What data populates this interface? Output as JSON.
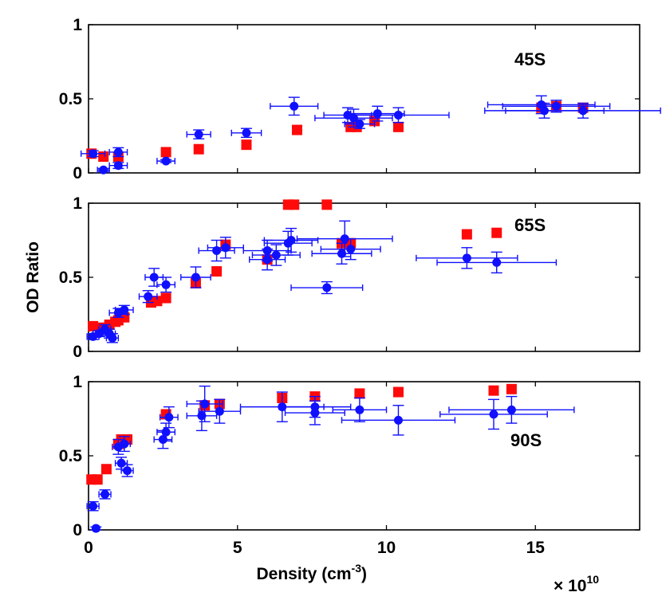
{
  "chart_data": {
    "type": "scatter",
    "ylabel": "OD Ratio",
    "xlabel": "Density (cm",
    "xlabel_sup": "-3",
    "xlabel_close": ")",
    "x_multiplier": "× 10",
    "x_multiplier_exp": "10",
    "xlim": [
      0,
      18.5
    ],
    "ylim": [
      0,
      1
    ],
    "xticks": [
      0,
      5,
      10,
      15
    ],
    "xtick_labels": [
      "0",
      "5",
      "10",
      "15"
    ],
    "yticks": [
      0,
      0.5,
      1
    ],
    "ytick_labels": [
      "0",
      "0.5",
      "1"
    ],
    "colors": {
      "series_blue": "#1010ff",
      "series_red": "#ff0a0a"
    },
    "panels": [
      {
        "label": "45S",
        "blue": [
          {
            "x": 0.15,
            "y": 0.13,
            "xerr": 0.4,
            "yerr": 0.02
          },
          {
            "x": 0.5,
            "y": 0.02,
            "xerr": 0.2,
            "yerr": 0.01
          },
          {
            "x": 1.0,
            "y": 0.14,
            "xerr": 0.3,
            "yerr": 0.03
          },
          {
            "x": 1.0,
            "y": 0.05,
            "xerr": 0.3,
            "yerr": 0.02
          },
          {
            "x": 2.6,
            "y": 0.08,
            "xerr": 0.3,
            "yerr": 0.01
          },
          {
            "x": 3.7,
            "y": 0.26,
            "xerr": 0.4,
            "yerr": 0.03
          },
          {
            "x": 5.3,
            "y": 0.27,
            "xerr": 0.5,
            "yerr": 0.03
          },
          {
            "x": 6.9,
            "y": 0.45,
            "xerr": 0.8,
            "yerr": 0.06
          },
          {
            "x": 8.7,
            "y": 0.39,
            "xerr": 0.8,
            "yerr": 0.05
          },
          {
            "x": 8.9,
            "y": 0.37,
            "xerr": 1.3,
            "yerr": 0.06
          },
          {
            "x": 9.1,
            "y": 0.33,
            "xerr": 0.5,
            "yerr": 0.03
          },
          {
            "x": 9.7,
            "y": 0.4,
            "xerr": 0.9,
            "yerr": 0.05
          },
          {
            "x": 10.4,
            "y": 0.39,
            "xerr": 1.7,
            "yerr": 0.05
          },
          {
            "x": 15.2,
            "y": 0.46,
            "xerr": 1.8,
            "yerr": 0.06
          },
          {
            "x": 15.3,
            "y": 0.42,
            "xerr": 2.0,
            "yerr": 0.05
          },
          {
            "x": 15.7,
            "y": 0.45,
            "xerr": 1.8,
            "yerr": 0.04
          },
          {
            "x": 16.6,
            "y": 0.42,
            "xerr": 2.6,
            "yerr": 0.05
          }
        ],
        "red": [
          {
            "x": 0.1,
            "y": 0.13
          },
          {
            "x": 0.5,
            "y": 0.11
          },
          {
            "x": 1.0,
            "y": 0.11
          },
          {
            "x": 2.6,
            "y": 0.14
          },
          {
            "x": 3.7,
            "y": 0.16
          },
          {
            "x": 5.3,
            "y": 0.19
          },
          {
            "x": 7.0,
            "y": 0.29
          },
          {
            "x": 8.8,
            "y": 0.31
          },
          {
            "x": 9.0,
            "y": 0.31
          },
          {
            "x": 9.6,
            "y": 0.35
          },
          {
            "x": 10.4,
            "y": 0.31
          },
          {
            "x": 15.2,
            "y": 0.44
          },
          {
            "x": 15.7,
            "y": 0.45
          },
          {
            "x": 16.6,
            "y": 0.44
          }
        ]
      },
      {
        "label": "65S",
        "blue": [
          {
            "x": 0.15,
            "y": 0.1,
            "xerr": 0.2,
            "yerr": 0.02
          },
          {
            "x": 0.35,
            "y": 0.12,
            "xerr": 0.2,
            "yerr": 0.02
          },
          {
            "x": 0.55,
            "y": 0.15,
            "xerr": 0.2,
            "yerr": 0.03
          },
          {
            "x": 0.7,
            "y": 0.12,
            "xerr": 0.2,
            "yerr": 0.03
          },
          {
            "x": 0.8,
            "y": 0.09,
            "xerr": 0.2,
            "yerr": 0.03
          },
          {
            "x": 1.0,
            "y": 0.26,
            "xerr": 0.3,
            "yerr": 0.03
          },
          {
            "x": 1.2,
            "y": 0.28,
            "xerr": 0.3,
            "yerr": 0.03
          },
          {
            "x": 2.0,
            "y": 0.37,
            "xerr": 0.3,
            "yerr": 0.04
          },
          {
            "x": 2.2,
            "y": 0.5,
            "xerr": 0.3,
            "yerr": 0.06
          },
          {
            "x": 2.6,
            "y": 0.45,
            "xerr": 0.3,
            "yerr": 0.05
          },
          {
            "x": 3.6,
            "y": 0.5,
            "xerr": 0.5,
            "yerr": 0.07
          },
          {
            "x": 4.3,
            "y": 0.68,
            "xerr": 0.6,
            "yerr": 0.07
          },
          {
            "x": 4.6,
            "y": 0.7,
            "xerr": 0.6,
            "yerr": 0.07
          },
          {
            "x": 6.0,
            "y": 0.62,
            "xerr": 0.6,
            "yerr": 0.07
          },
          {
            "x": 6.0,
            "y": 0.68,
            "xerr": 0.8,
            "yerr": 0.07
          },
          {
            "x": 6.3,
            "y": 0.65,
            "xerr": 0.8,
            "yerr": 0.07
          },
          {
            "x": 6.7,
            "y": 0.73,
            "xerr": 0.8,
            "yerr": 0.08
          },
          {
            "x": 6.8,
            "y": 0.75,
            "xerr": 0.9,
            "yerr": 0.08
          },
          {
            "x": 8.0,
            "y": 0.43,
            "xerr": 1.2,
            "yerr": 0.04
          },
          {
            "x": 8.5,
            "y": 0.66,
            "xerr": 1.0,
            "yerr": 0.07
          },
          {
            "x": 8.6,
            "y": 0.76,
            "xerr": 1.6,
            "yerr": 0.12
          },
          {
            "x": 8.8,
            "y": 0.69,
            "xerr": 1.0,
            "yerr": 0.07
          },
          {
            "x": 12.7,
            "y": 0.63,
            "xerr": 1.7,
            "yerr": 0.07
          },
          {
            "x": 13.7,
            "y": 0.6,
            "xerr": 2.0,
            "yerr": 0.07
          }
        ],
        "red": [
          {
            "x": 0.15,
            "y": 0.17
          },
          {
            "x": 0.45,
            "y": 0.16
          },
          {
            "x": 0.7,
            "y": 0.18
          },
          {
            "x": 0.9,
            "y": 0.2
          },
          {
            "x": 1.0,
            "y": 0.21
          },
          {
            "x": 1.2,
            "y": 0.23
          },
          {
            "x": 2.1,
            "y": 0.33
          },
          {
            "x": 2.3,
            "y": 0.34
          },
          {
            "x": 2.6,
            "y": 0.36
          },
          {
            "x": 3.6,
            "y": 0.46
          },
          {
            "x": 4.3,
            "y": 0.54
          },
          {
            "x": 4.6,
            "y": 0.72
          },
          {
            "x": 6.0,
            "y": 0.62
          },
          {
            "x": 6.7,
            "y": 0.99
          },
          {
            "x": 6.9,
            "y": 0.99
          },
          {
            "x": 8.0,
            "y": 0.99
          },
          {
            "x": 8.5,
            "y": 0.73
          },
          {
            "x": 8.8,
            "y": 0.73
          },
          {
            "x": 12.7,
            "y": 0.79
          },
          {
            "x": 13.7,
            "y": 0.8
          }
        ]
      },
      {
        "label": "90S",
        "blue": [
          {
            "x": 0.15,
            "y": 0.16,
            "xerr": 0.2,
            "yerr": 0.03
          },
          {
            "x": 0.25,
            "y": 0.01,
            "xerr": 0.1,
            "yerr": 0.01
          },
          {
            "x": 0.55,
            "y": 0.24,
            "xerr": 0.2,
            "yerr": 0.03
          },
          {
            "x": 1.0,
            "y": 0.56,
            "xerr": 0.2,
            "yerr": 0.05
          },
          {
            "x": 1.1,
            "y": 0.45,
            "xerr": 0.2,
            "yerr": 0.04
          },
          {
            "x": 1.2,
            "y": 0.58,
            "xerr": 0.2,
            "yerr": 0.05
          },
          {
            "x": 1.3,
            "y": 0.4,
            "xerr": 0.2,
            "yerr": 0.04
          },
          {
            "x": 2.5,
            "y": 0.61,
            "xerr": 0.3,
            "yerr": 0.06
          },
          {
            "x": 2.6,
            "y": 0.66,
            "xerr": 0.3,
            "yerr": 0.06
          },
          {
            "x": 2.7,
            "y": 0.76,
            "xerr": 0.3,
            "yerr": 0.07
          },
          {
            "x": 3.8,
            "y": 0.77,
            "xerr": 0.5,
            "yerr": 0.1
          },
          {
            "x": 3.9,
            "y": 0.85,
            "xerr": 0.6,
            "yerr": 0.12
          },
          {
            "x": 4.4,
            "y": 0.8,
            "xerr": 0.7,
            "yerr": 0.08
          },
          {
            "x": 6.5,
            "y": 0.83,
            "xerr": 1.4,
            "yerr": 0.1
          },
          {
            "x": 7.6,
            "y": 0.83,
            "xerr": 1.2,
            "yerr": 0.07
          },
          {
            "x": 7.6,
            "y": 0.79,
            "xerr": 1.0,
            "yerr": 0.08
          },
          {
            "x": 9.1,
            "y": 0.81,
            "xerr": 0.9,
            "yerr": 0.08
          },
          {
            "x": 10.4,
            "y": 0.74,
            "xerr": 1.9,
            "yerr": 0.1
          },
          {
            "x": 13.6,
            "y": 0.78,
            "xerr": 1.8,
            "yerr": 0.1
          },
          {
            "x": 14.2,
            "y": 0.81,
            "xerr": 2.1,
            "yerr": 0.09
          }
        ],
        "red": [
          {
            "x": 0.1,
            "y": 0.34
          },
          {
            "x": 0.3,
            "y": 0.34
          },
          {
            "x": 0.6,
            "y": 0.41
          },
          {
            "x": 1.0,
            "y": 0.58
          },
          {
            "x": 1.1,
            "y": 0.61
          },
          {
            "x": 1.3,
            "y": 0.61
          },
          {
            "x": 2.6,
            "y": 0.78
          },
          {
            "x": 3.9,
            "y": 0.84
          },
          {
            "x": 4.4,
            "y": 0.85
          },
          {
            "x": 6.5,
            "y": 0.89
          },
          {
            "x": 7.6,
            "y": 0.9
          },
          {
            "x": 9.1,
            "y": 0.92
          },
          {
            "x": 10.4,
            "y": 0.93
          },
          {
            "x": 13.6,
            "y": 0.94
          },
          {
            "x": 14.2,
            "y": 0.95
          }
        ]
      }
    ]
  }
}
